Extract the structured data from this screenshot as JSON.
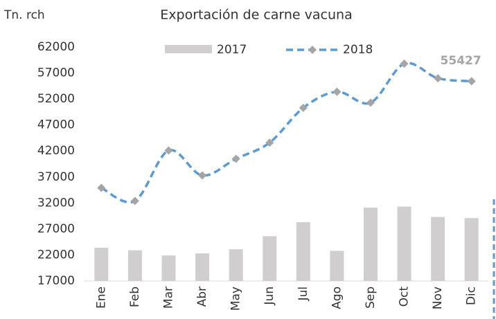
{
  "chart_data": {
    "type": "bar_line",
    "title": "Exportación de carne vacuna",
    "y_label": "Tn. rch",
    "categories": [
      "Ene",
      "Feb",
      "Mar",
      "Abr",
      "May",
      "Jun",
      "Jul",
      "Ago",
      "Sep",
      "Oct",
      "Nov",
      "Dic"
    ],
    "series": [
      {
        "name": "2017",
        "type": "bar",
        "color": "#d0cece",
        "values": [
          23400,
          22900,
          21900,
          22300,
          23100,
          25600,
          28300,
          22800,
          31100,
          31300,
          29300,
          29100
        ]
      },
      {
        "name": "2018",
        "type": "line",
        "color": "#5b9bd5",
        "marker_color": "#a5a5a5",
        "values": [
          34900,
          32400,
          42100,
          37300,
          40500,
          43600,
          50300,
          53400,
          51300,
          58800,
          56000,
          55427
        ]
      }
    ],
    "ylim": [
      17000,
      62000
    ],
    "yticks": [
      17000,
      22000,
      27000,
      32000,
      37000,
      42000,
      47000,
      52000,
      57000,
      62000
    ],
    "legend": "top"
  }
}
